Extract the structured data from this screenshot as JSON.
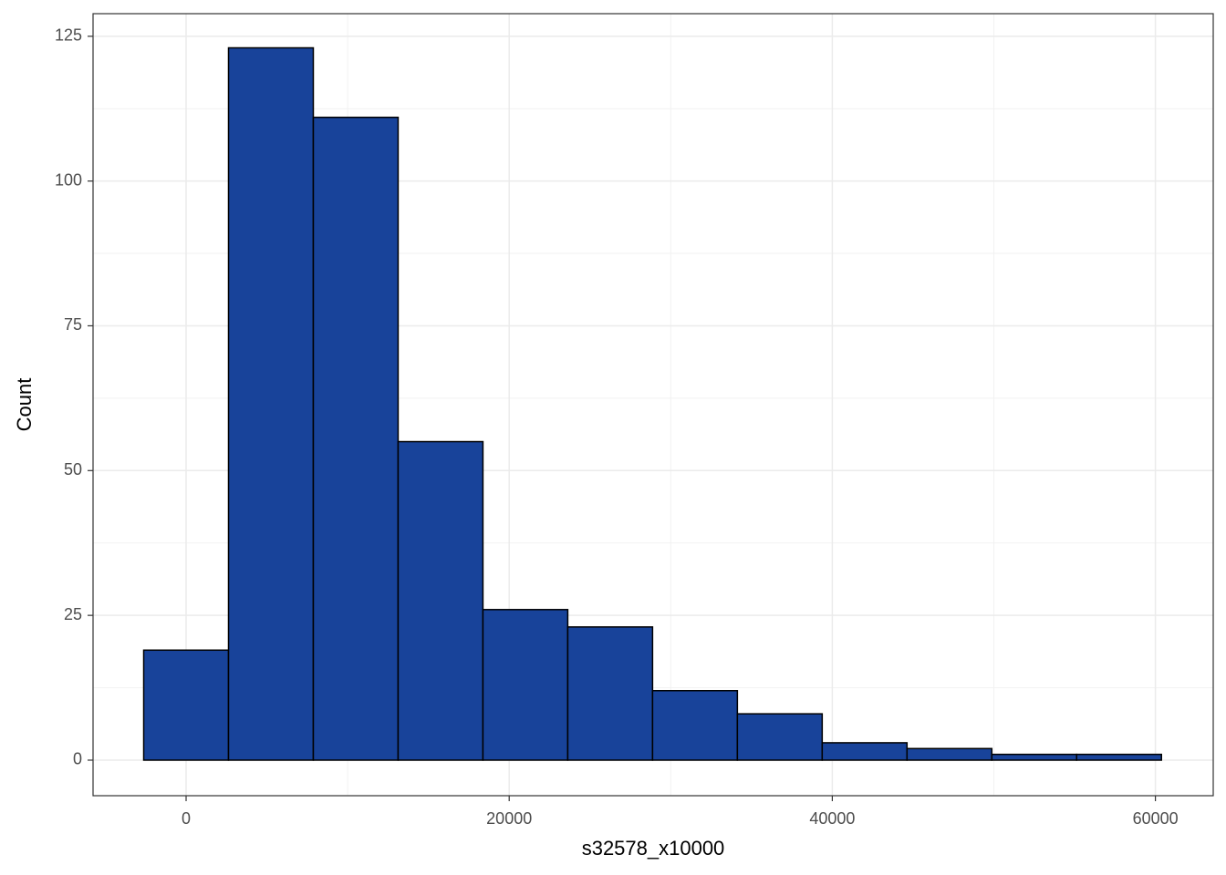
{
  "chart_data": {
    "type": "histogram",
    "x_label": "s32578_x10000",
    "y_label": "Count",
    "bins": [
      -2625,
      2625,
      7875,
      13125,
      18375,
      23625,
      28875,
      34125,
      39375,
      44625,
      49875,
      55125,
      60375
    ],
    "counts": [
      19,
      123,
      111,
      55,
      26,
      23,
      12,
      8,
      3,
      2,
      1,
      1
    ],
    "color": "#18439a",
    "edge_color": "#000000",
    "xlim": [
      -5760,
      63580
    ],
    "ylim": [
      -6.14,
      128.9
    ],
    "xticks": [
      0,
      20000,
      40000,
      60000
    ],
    "yticks": [
      0,
      25,
      50,
      75,
      100,
      125
    ],
    "x_minor_ticks": [
      10000,
      30000,
      50000
    ],
    "y_minor_ticks": [
      12.5,
      37.5,
      62.5,
      87.5,
      112.5
    ],
    "grid": true
  }
}
